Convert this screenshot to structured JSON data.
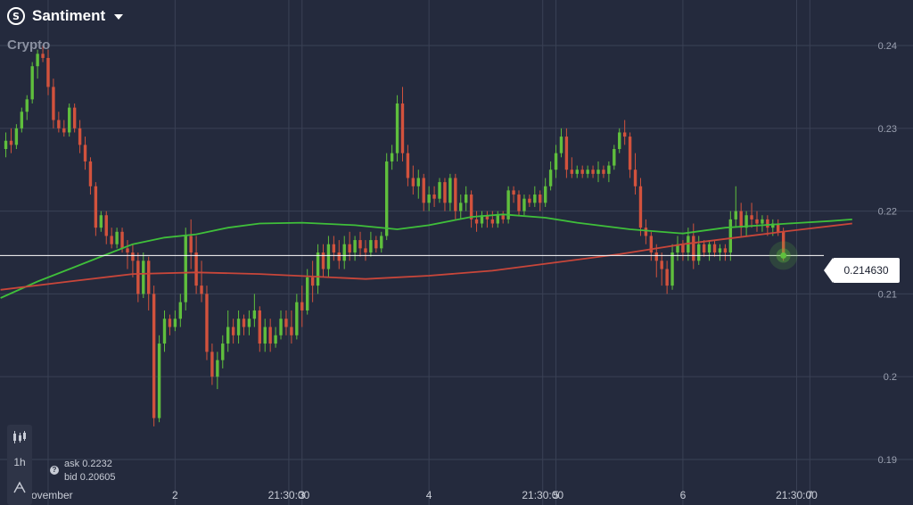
{
  "header": {
    "asset_name": "Santiment",
    "logo_text": "S",
    "category": "Crypto"
  },
  "current_price": {
    "value": 0.21463,
    "label": "0.214630",
    "color": "#ffffff"
  },
  "quote": {
    "ask_label": "ask",
    "ask": "0.2232",
    "bid_label": "bid",
    "bid": "0.20605"
  },
  "toolbar": {
    "chart_type_icon": "candlestick-icon",
    "timeframe": "1h",
    "indicator_icon": "indicator-icon"
  },
  "colors": {
    "up": "#5fbf3d",
    "down": "#d2523d",
    "ma_fast": "#3fbf3a",
    "ma_slow": "#c8463a",
    "background": "#242a3d",
    "grid": "#3a4155"
  },
  "chart_data": {
    "type": "candlestick",
    "title": "",
    "y_tick_labels": [
      "0.19",
      "0.2",
      "0.21",
      "0.22",
      "0.23",
      "0.24"
    ],
    "y_ticks": [
      0.19,
      0.2,
      0.21,
      0.22,
      0.23,
      0.24
    ],
    "ylim": [
      0.1845,
      0.2455
    ],
    "x_tick_labels": [
      "November",
      "2",
      "21:30:00",
      "3",
      "4",
      "21:30:00",
      "5",
      "6",
      "21:30:00",
      "7"
    ],
    "x_ticks_hours": [
      0,
      24,
      45.5,
      48,
      72,
      93.5,
      96,
      120,
      141.5,
      144
    ],
    "xlim_hours": [
      -9.1,
      163.5
    ],
    "grid": true,
    "candles": {
      "start_hour": -8,
      "step_hours": 1,
      "ohlc": [
        [
          0.2275,
          0.2295,
          0.2265,
          0.2285
        ],
        [
          0.2285,
          0.23,
          0.227,
          0.228
        ],
        [
          0.228,
          0.2305,
          0.2275,
          0.23
        ],
        [
          0.23,
          0.2325,
          0.2295,
          0.232
        ],
        [
          0.232,
          0.234,
          0.231,
          0.2335
        ],
        [
          0.2335,
          0.238,
          0.233,
          0.2375
        ],
        [
          0.2375,
          0.2395,
          0.236,
          0.239
        ],
        [
          0.239,
          0.24,
          0.238,
          0.2385
        ],
        [
          0.2385,
          0.2395,
          0.234,
          0.235
        ],
        [
          0.235,
          0.236,
          0.23,
          0.231
        ],
        [
          0.231,
          0.232,
          0.2295,
          0.23
        ],
        [
          0.23,
          0.231,
          0.229,
          0.2295
        ],
        [
          0.2295,
          0.233,
          0.229,
          0.2325
        ],
        [
          0.2325,
          0.233,
          0.2295,
          0.23
        ],
        [
          0.23,
          0.231,
          0.227,
          0.228
        ],
        [
          0.228,
          0.229,
          0.225,
          0.226
        ],
        [
          0.226,
          0.2265,
          0.222,
          0.223
        ],
        [
          0.223,
          0.2235,
          0.217,
          0.218
        ],
        [
          0.218,
          0.22,
          0.2175,
          0.2195
        ],
        [
          0.2195,
          0.22,
          0.216,
          0.217
        ],
        [
          0.217,
          0.218,
          0.2155,
          0.216
        ],
        [
          0.216,
          0.218,
          0.2155,
          0.2175
        ],
        [
          0.2175,
          0.218,
          0.215,
          0.2155
        ],
        [
          0.2155,
          0.2165,
          0.213,
          0.215
        ],
        [
          0.215,
          0.216,
          0.212,
          0.214
        ],
        [
          0.214,
          0.215,
          0.209,
          0.21
        ],
        [
          0.21,
          0.215,
          0.2095,
          0.214
        ],
        [
          0.214,
          0.2145,
          0.208,
          0.21
        ],
        [
          0.21,
          0.211,
          0.194,
          0.195
        ],
        [
          0.195,
          0.205,
          0.1945,
          0.204
        ],
        [
          0.204,
          0.208,
          0.203,
          0.207
        ],
        [
          0.207,
          0.2075,
          0.205,
          0.206
        ],
        [
          0.206,
          0.208,
          0.2055,
          0.207
        ],
        [
          0.207,
          0.21,
          0.206,
          0.209
        ],
        [
          0.209,
          0.218,
          0.208,
          0.217
        ],
        [
          0.217,
          0.219,
          0.213,
          0.215
        ],
        [
          0.215,
          0.217,
          0.21,
          0.211
        ],
        [
          0.211,
          0.214,
          0.209,
          0.21
        ],
        [
          0.21,
          0.211,
          0.202,
          0.203
        ],
        [
          0.203,
          0.204,
          0.199,
          0.2
        ],
        [
          0.2,
          0.203,
          0.1985,
          0.202
        ],
        [
          0.202,
          0.205,
          0.201,
          0.204
        ],
        [
          0.204,
          0.208,
          0.203,
          0.206
        ],
        [
          0.206,
          0.207,
          0.204,
          0.205
        ],
        [
          0.205,
          0.208,
          0.204,
          0.207
        ],
        [
          0.207,
          0.2075,
          0.205,
          0.206
        ],
        [
          0.206,
          0.208,
          0.205,
          0.207
        ],
        [
          0.207,
          0.21,
          0.206,
          0.208
        ],
        [
          0.208,
          0.2085,
          0.203,
          0.204
        ],
        [
          0.204,
          0.207,
          0.203,
          0.206
        ],
        [
          0.206,
          0.207,
          0.203,
          0.204
        ],
        [
          0.204,
          0.206,
          0.2035,
          0.205
        ],
        [
          0.205,
          0.208,
          0.2045,
          0.207
        ],
        [
          0.207,
          0.208,
          0.205,
          0.206
        ],
        [
          0.206,
          0.208,
          0.204,
          0.205
        ],
        [
          0.205,
          0.21,
          0.2045,
          0.209
        ],
        [
          0.209,
          0.211,
          0.206,
          0.208
        ],
        [
          0.208,
          0.213,
          0.2075,
          0.212
        ],
        [
          0.212,
          0.214,
          0.209,
          0.211
        ],
        [
          0.211,
          0.216,
          0.21,
          0.215
        ],
        [
          0.215,
          0.216,
          0.212,
          0.213
        ],
        [
          0.213,
          0.217,
          0.212,
          0.216
        ],
        [
          0.216,
          0.217,
          0.214,
          0.215
        ],
        [
          0.215,
          0.2165,
          0.213,
          0.214
        ],
        [
          0.214,
          0.217,
          0.213,
          0.216
        ],
        [
          0.216,
          0.2175,
          0.214,
          0.215
        ],
        [
          0.215,
          0.217,
          0.214,
          0.2165
        ],
        [
          0.2165,
          0.2175,
          0.2145,
          0.2155
        ],
        [
          0.2155,
          0.2165,
          0.214,
          0.215
        ],
        [
          0.215,
          0.2175,
          0.2145,
          0.2165
        ],
        [
          0.2165,
          0.217,
          0.215,
          0.2155
        ],
        [
          0.2155,
          0.2175,
          0.215,
          0.217
        ],
        [
          0.217,
          0.227,
          0.2165,
          0.226
        ],
        [
          0.226,
          0.228,
          0.225,
          0.227
        ],
        [
          0.227,
          0.234,
          0.226,
          0.233
        ],
        [
          0.233,
          0.235,
          0.226,
          0.227
        ],
        [
          0.227,
          0.228,
          0.223,
          0.224
        ],
        [
          0.224,
          0.2255,
          0.222,
          0.223
        ],
        [
          0.223,
          0.225,
          0.2215,
          0.224
        ],
        [
          0.224,
          0.2245,
          0.22,
          0.221
        ],
        [
          0.221,
          0.223,
          0.22,
          0.222
        ],
        [
          0.222,
          0.223,
          0.2205,
          0.2215
        ],
        [
          0.2215,
          0.224,
          0.221,
          0.2235
        ],
        [
          0.2235,
          0.224,
          0.22,
          0.221
        ],
        [
          0.221,
          0.2245,
          0.22,
          0.224
        ],
        [
          0.224,
          0.2245,
          0.219,
          0.22
        ],
        [
          0.22,
          0.222,
          0.219,
          0.221
        ],
        [
          0.221,
          0.223,
          0.22,
          0.222
        ],
        [
          0.222,
          0.2225,
          0.218,
          0.219
        ],
        [
          0.219,
          0.22,
          0.2175,
          0.2185
        ],
        [
          0.2185,
          0.22,
          0.218,
          0.2195
        ],
        [
          0.2195,
          0.22,
          0.218,
          0.219
        ],
        [
          0.219,
          0.22,
          0.218,
          0.2185
        ],
        [
          0.2185,
          0.22,
          0.218,
          0.2195
        ],
        [
          0.2195,
          0.22,
          0.2185,
          0.219
        ],
        [
          0.219,
          0.223,
          0.2185,
          0.2225
        ],
        [
          0.2225,
          0.223,
          0.221,
          0.222
        ],
        [
          0.222,
          0.2225,
          0.2195,
          0.22
        ],
        [
          0.22,
          0.222,
          0.2195,
          0.2215
        ],
        [
          0.2215,
          0.222,
          0.2205,
          0.221
        ],
        [
          0.221,
          0.223,
          0.2205,
          0.222
        ],
        [
          0.222,
          0.2225,
          0.22,
          0.221
        ],
        [
          0.221,
          0.224,
          0.2205,
          0.223
        ],
        [
          0.223,
          0.226,
          0.2225,
          0.225
        ],
        [
          0.225,
          0.228,
          0.224,
          0.227
        ],
        [
          0.227,
          0.23,
          0.2265,
          0.229
        ],
        [
          0.229,
          0.23,
          0.224,
          0.225
        ],
        [
          0.225,
          0.2265,
          0.224,
          0.2245
        ],
        [
          0.2245,
          0.2255,
          0.224,
          0.225
        ],
        [
          0.225,
          0.2255,
          0.224,
          0.2245
        ],
        [
          0.2245,
          0.2255,
          0.224,
          0.225
        ],
        [
          0.225,
          0.2255,
          0.224,
          0.2245
        ],
        [
          0.2245,
          0.226,
          0.2235,
          0.225
        ],
        [
          0.225,
          0.2255,
          0.224,
          0.2245
        ],
        [
          0.2245,
          0.226,
          0.2235,
          0.2255
        ],
        [
          0.2255,
          0.228,
          0.225,
          0.2275
        ],
        [
          0.2275,
          0.23,
          0.227,
          0.2295
        ],
        [
          0.2295,
          0.231,
          0.228,
          0.229
        ],
        [
          0.229,
          0.2295,
          0.224,
          0.225
        ],
        [
          0.225,
          0.227,
          0.222,
          0.223
        ],
        [
          0.223,
          0.224,
          0.217,
          0.218
        ],
        [
          0.218,
          0.219,
          0.216,
          0.217
        ],
        [
          0.217,
          0.2175,
          0.214,
          0.215
        ],
        [
          0.215,
          0.216,
          0.212,
          0.214
        ],
        [
          0.214,
          0.215,
          0.211,
          0.213
        ],
        [
          0.213,
          0.214,
          0.21,
          0.211
        ],
        [
          0.211,
          0.216,
          0.2105,
          0.215
        ],
        [
          0.215,
          0.217,
          0.214,
          0.216
        ],
        [
          0.216,
          0.2165,
          0.214,
          0.215
        ],
        [
          0.215,
          0.218,
          0.214,
          0.217
        ],
        [
          0.217,
          0.2185,
          0.213,
          0.214
        ],
        [
          0.214,
          0.217,
          0.2135,
          0.216
        ],
        [
          0.216,
          0.2165,
          0.2145,
          0.215
        ],
        [
          0.215,
          0.2165,
          0.214,
          0.216
        ],
        [
          0.216,
          0.2165,
          0.2145,
          0.215
        ],
        [
          0.215,
          0.216,
          0.214,
          0.2155
        ],
        [
          0.2155,
          0.216,
          0.214,
          0.215
        ],
        [
          0.215,
          0.22,
          0.214,
          0.219
        ],
        [
          0.219,
          0.223,
          0.218,
          0.22
        ],
        [
          0.22,
          0.221,
          0.217,
          0.218
        ],
        [
          0.218,
          0.22,
          0.217,
          0.2195
        ],
        [
          0.2195,
          0.221,
          0.218,
          0.219
        ],
        [
          0.219,
          0.22,
          0.2175,
          0.2185
        ],
        [
          0.2185,
          0.2195,
          0.2175,
          0.219
        ],
        [
          0.219,
          0.2195,
          0.217,
          0.218
        ],
        [
          0.218,
          0.219,
          0.217,
          0.2185
        ],
        [
          0.2185,
          0.219,
          0.217,
          0.2175
        ],
        [
          0.2175,
          0.218,
          0.214,
          0.2146
        ]
      ]
    },
    "moving_averages": [
      {
        "points_hours": [
          -9,
          -2,
          4,
          10,
          16,
          22,
          28,
          34,
          40,
          48,
          58,
          66,
          72,
          80,
          86,
          94,
          100,
          110,
          120,
          128,
          140,
          148,
          152
        ],
        "values": [
          0.2095,
          0.2115,
          0.213,
          0.2145,
          0.216,
          0.2168,
          0.2172,
          0.218,
          0.2185,
          0.2186,
          0.2183,
          0.2178,
          0.2183,
          0.2193,
          0.2196,
          0.2192,
          0.2186,
          0.2178,
          0.2173,
          0.218,
          0.2185,
          0.2188,
          0.219
        ]
      },
      {
        "points_hours": [
          -9,
          4,
          16,
          28,
          40,
          50,
          60,
          72,
          84,
          96,
          108,
          120,
          130,
          140,
          148,
          152
        ],
        "values": [
          0.2105,
          0.2115,
          0.2124,
          0.2126,
          0.2124,
          0.2121,
          0.2118,
          0.2122,
          0.2128,
          0.2138,
          0.2148,
          0.216,
          0.2168,
          0.2176,
          0.2182,
          0.2185
        ]
      }
    ]
  }
}
